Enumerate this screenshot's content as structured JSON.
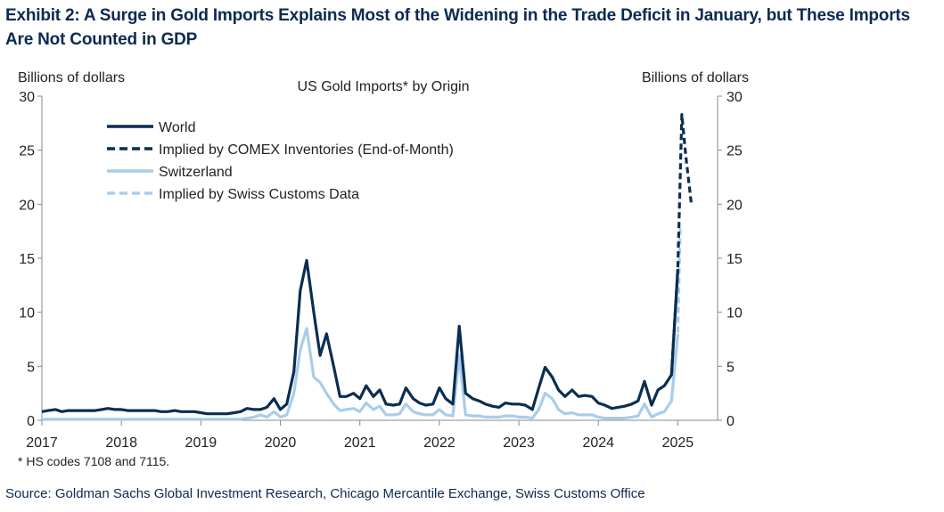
{
  "title": "Exhibit 2: A Surge in Gold Imports Explains Most of the Widening in the Trade Deficit in January, but These Imports Are Not Counted in GDP",
  "source": "Source: Goldman Sachs Global Investment Research, Chicago Mercantile Exchange, Swiss Customs Office",
  "colors": {
    "world": "#0b2d52",
    "switzerland": "#a9cdea"
  },
  "chart_data": {
    "type": "line",
    "title": "US Gold Imports* by Origin",
    "ylabel_left": "Billions of dollars",
    "ylabel_right": "Billions of dollars",
    "ylim": [
      0,
      30
    ],
    "yticks": [
      0,
      5,
      10,
      15,
      20,
      25,
      30
    ],
    "xlim": [
      2017,
      2025.5
    ],
    "xticks": [
      2017,
      2018,
      2019,
      2020,
      2021,
      2022,
      2023,
      2024,
      2025
    ],
    "footnote": "* HS codes 7108 and 7115.",
    "legend_position": "top-left",
    "series": [
      {
        "name": "World",
        "style": "solid",
        "color": "#0b2d52",
        "points": [
          [
            2017.0,
            0.8
          ],
          [
            2017.08,
            0.9
          ],
          [
            2017.17,
            1.0
          ],
          [
            2017.25,
            0.8
          ],
          [
            2017.33,
            0.9
          ],
          [
            2017.42,
            0.9
          ],
          [
            2017.5,
            0.9
          ],
          [
            2017.58,
            0.9
          ],
          [
            2017.67,
            0.9
          ],
          [
            2017.75,
            1.0
          ],
          [
            2017.83,
            1.1
          ],
          [
            2017.92,
            1.0
          ],
          [
            2018.0,
            1.0
          ],
          [
            2018.08,
            0.9
          ],
          [
            2018.17,
            0.9
          ],
          [
            2018.25,
            0.9
          ],
          [
            2018.33,
            0.9
          ],
          [
            2018.42,
            0.9
          ],
          [
            2018.5,
            0.8
          ],
          [
            2018.58,
            0.8
          ],
          [
            2018.67,
            0.9
          ],
          [
            2018.75,
            0.8
          ],
          [
            2018.83,
            0.8
          ],
          [
            2018.92,
            0.8
          ],
          [
            2019.0,
            0.7
          ],
          [
            2019.08,
            0.6
          ],
          [
            2019.17,
            0.6
          ],
          [
            2019.25,
            0.6
          ],
          [
            2019.33,
            0.6
          ],
          [
            2019.42,
            0.7
          ],
          [
            2019.5,
            0.8
          ],
          [
            2019.58,
            1.1
          ],
          [
            2019.67,
            1.0
          ],
          [
            2019.75,
            1.0
          ],
          [
            2019.83,
            1.2
          ],
          [
            2019.92,
            2.0
          ],
          [
            2020.0,
            1.0
          ],
          [
            2020.08,
            1.5
          ],
          [
            2020.17,
            4.5
          ],
          [
            2020.25,
            12.0
          ],
          [
            2020.33,
            14.8
          ],
          [
            2020.42,
            10.0
          ],
          [
            2020.5,
            6.0
          ],
          [
            2020.58,
            8.0
          ],
          [
            2020.67,
            5.0
          ],
          [
            2020.75,
            2.2
          ],
          [
            2020.83,
            2.2
          ],
          [
            2020.92,
            2.5
          ],
          [
            2021.0,
            2.0
          ],
          [
            2021.08,
            3.2
          ],
          [
            2021.17,
            2.2
          ],
          [
            2021.25,
            2.8
          ],
          [
            2021.33,
            1.5
          ],
          [
            2021.42,
            1.4
          ],
          [
            2021.5,
            1.5
          ],
          [
            2021.58,
            3.0
          ],
          [
            2021.67,
            2.0
          ],
          [
            2021.75,
            1.6
          ],
          [
            2021.83,
            1.4
          ],
          [
            2021.92,
            1.5
          ],
          [
            2022.0,
            3.0
          ],
          [
            2022.08,
            2.0
          ],
          [
            2022.17,
            1.5
          ],
          [
            2022.25,
            8.7
          ],
          [
            2022.33,
            2.5
          ],
          [
            2022.42,
            2.0
          ],
          [
            2022.5,
            1.8
          ],
          [
            2022.58,
            1.5
          ],
          [
            2022.67,
            1.3
          ],
          [
            2022.75,
            1.2
          ],
          [
            2022.83,
            1.6
          ],
          [
            2022.92,
            1.5
          ],
          [
            2023.0,
            1.5
          ],
          [
            2023.08,
            1.4
          ],
          [
            2023.17,
            1.0
          ],
          [
            2023.25,
            3.0
          ],
          [
            2023.33,
            4.9
          ],
          [
            2023.42,
            4.0
          ],
          [
            2023.5,
            2.8
          ],
          [
            2023.58,
            2.2
          ],
          [
            2023.67,
            2.8
          ],
          [
            2023.75,
            2.2
          ],
          [
            2023.83,
            2.3
          ],
          [
            2023.92,
            2.2
          ],
          [
            2024.0,
            1.6
          ],
          [
            2024.08,
            1.4
          ],
          [
            2024.17,
            1.1
          ],
          [
            2024.25,
            1.2
          ],
          [
            2024.33,
            1.3
          ],
          [
            2024.42,
            1.5
          ],
          [
            2024.5,
            1.8
          ],
          [
            2024.58,
            3.6
          ],
          [
            2024.67,
            1.4
          ],
          [
            2024.75,
            2.8
          ],
          [
            2024.83,
            3.2
          ],
          [
            2024.92,
            4.2
          ],
          [
            2025.0,
            14.0
          ]
        ]
      },
      {
        "name": "Implied by COMEX Inventories (End-of-Month)",
        "style": "dashed",
        "color": "#0b2d52",
        "points": [
          [
            2024.92,
            4.2
          ],
          [
            2025.0,
            14.0
          ],
          [
            2025.05,
            28.3
          ],
          [
            2025.1,
            24.5
          ],
          [
            2025.17,
            20.0
          ]
        ]
      },
      {
        "name": "Switzerland",
        "style": "solid",
        "color": "#a9cdea",
        "points": [
          [
            2017.0,
            0.1
          ],
          [
            2017.25,
            0.1
          ],
          [
            2017.5,
            0.1
          ],
          [
            2017.75,
            0.1
          ],
          [
            2018.0,
            0.1
          ],
          [
            2018.25,
            0.1
          ],
          [
            2018.5,
            0.1
          ],
          [
            2018.75,
            0.1
          ],
          [
            2019.0,
            0.1
          ],
          [
            2019.25,
            0.1
          ],
          [
            2019.5,
            0.1
          ],
          [
            2019.67,
            0.3
          ],
          [
            2019.75,
            0.5
          ],
          [
            2019.83,
            0.3
          ],
          [
            2019.92,
            0.8
          ],
          [
            2020.0,
            0.3
          ],
          [
            2020.08,
            0.5
          ],
          [
            2020.17,
            2.5
          ],
          [
            2020.25,
            6.5
          ],
          [
            2020.33,
            8.5
          ],
          [
            2020.42,
            4.0
          ],
          [
            2020.5,
            3.5
          ],
          [
            2020.58,
            2.5
          ],
          [
            2020.67,
            1.5
          ],
          [
            2020.75,
            0.9
          ],
          [
            2020.83,
            1.0
          ],
          [
            2020.92,
            1.1
          ],
          [
            2021.0,
            0.8
          ],
          [
            2021.08,
            1.6
          ],
          [
            2021.17,
            1.0
          ],
          [
            2021.25,
            1.3
          ],
          [
            2021.33,
            0.5
          ],
          [
            2021.42,
            0.5
          ],
          [
            2021.5,
            0.6
          ],
          [
            2021.58,
            1.5
          ],
          [
            2021.67,
            0.8
          ],
          [
            2021.75,
            0.6
          ],
          [
            2021.83,
            0.5
          ],
          [
            2021.92,
            0.5
          ],
          [
            2022.0,
            1.0
          ],
          [
            2022.08,
            0.5
          ],
          [
            2022.17,
            0.4
          ],
          [
            2022.25,
            6.0
          ],
          [
            2022.33,
            0.5
          ],
          [
            2022.42,
            0.4
          ],
          [
            2022.5,
            0.4
          ],
          [
            2022.58,
            0.3
          ],
          [
            2022.67,
            0.3
          ],
          [
            2022.75,
            0.3
          ],
          [
            2022.83,
            0.4
          ],
          [
            2022.92,
            0.4
          ],
          [
            2023.0,
            0.3
          ],
          [
            2023.08,
            0.3
          ],
          [
            2023.17,
            0.2
          ],
          [
            2023.25,
            1.0
          ],
          [
            2023.33,
            2.5
          ],
          [
            2023.42,
            2.0
          ],
          [
            2023.5,
            1.0
          ],
          [
            2023.58,
            0.6
          ],
          [
            2023.67,
            0.7
          ],
          [
            2023.75,
            0.5
          ],
          [
            2023.83,
            0.5
          ],
          [
            2023.92,
            0.5
          ],
          [
            2024.0,
            0.3
          ],
          [
            2024.08,
            0.2
          ],
          [
            2024.17,
            0.2
          ],
          [
            2024.25,
            0.2
          ],
          [
            2024.33,
            0.2
          ],
          [
            2024.42,
            0.3
          ],
          [
            2024.5,
            0.4
          ],
          [
            2024.58,
            1.5
          ],
          [
            2024.67,
            0.3
          ],
          [
            2024.75,
            0.6
          ],
          [
            2024.83,
            0.8
          ],
          [
            2024.92,
            1.8
          ],
          [
            2025.0,
            8.0
          ]
        ]
      },
      {
        "name": "Implied by Swiss Customs Data",
        "style": "dashed",
        "color": "#a9cdea",
        "points": [
          [
            2024.92,
            1.8
          ],
          [
            2025.0,
            8.0
          ],
          [
            2025.03,
            18.0
          ]
        ]
      }
    ]
  }
}
